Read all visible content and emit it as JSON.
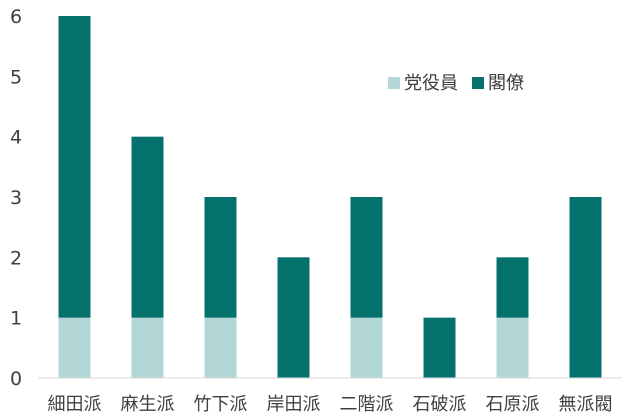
{
  "chart_data": {
    "type": "bar",
    "stacked": true,
    "categories": [
      "細田派",
      "麻生派",
      "竹下派",
      "岸田派",
      "二階派",
      "石破派",
      "石原派",
      "無派閥"
    ],
    "series": [
      {
        "name": "党役員",
        "values": [
          1,
          1,
          1,
          0,
          1,
          0,
          1,
          0
        ],
        "color": "#b3d6d6"
      },
      {
        "name": "閣僚",
        "values": [
          5,
          3,
          2,
          2,
          2,
          1,
          1,
          3
        ],
        "color": "#05716c"
      }
    ],
    "title": "",
    "xlabel": "",
    "ylabel": "",
    "ylim": [
      0,
      6
    ],
    "yticks": [
      0,
      1,
      2,
      3,
      4,
      5,
      6
    ],
    "grid": false,
    "legend_position": "top-right",
    "axis_color": "#d9d9d9",
    "text_color": "#404040"
  }
}
